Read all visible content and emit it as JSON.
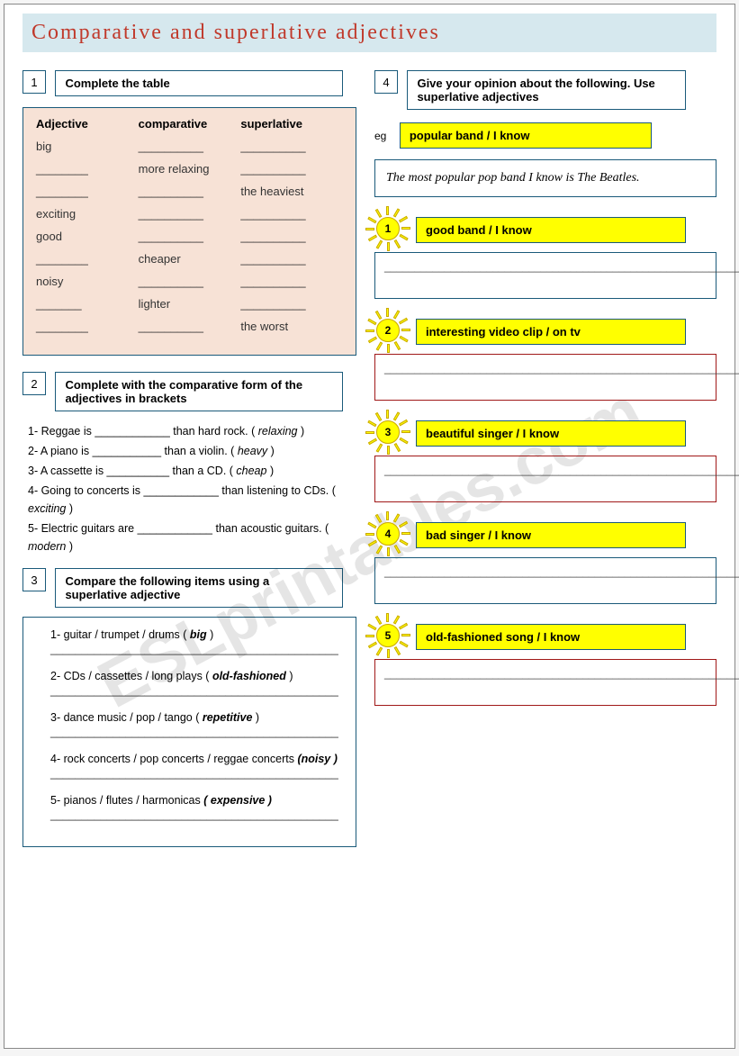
{
  "title": "Comparative    and    superlative    adjectives",
  "watermark": "ESLprintables.com",
  "ex1": {
    "num": "1",
    "instruction": "Complete  the  table",
    "headers": {
      "c1": "Adjective",
      "c2": "comparative",
      "c3": "superlative"
    },
    "rows": [
      {
        "c1": "big",
        "c2": "__________",
        "c3": "__________"
      },
      {
        "c1": "________",
        "c2": "more relaxing",
        "c3": "__________"
      },
      {
        "c1": "________",
        "c2": "__________",
        "c3": "the heaviest"
      },
      {
        "c1": "exciting",
        "c2": "__________",
        "c3": "__________"
      },
      {
        "c1": "good",
        "c2": "__________",
        "c3": "__________"
      },
      {
        "c1": "________",
        "c2": "cheaper",
        "c3": "__________"
      },
      {
        "c1": "noisy",
        "c2": "__________",
        "c3": "__________"
      },
      {
        "c1": "_______",
        "c2": "lighter",
        "c3": "__________"
      },
      {
        "c1": "________",
        "c2": "__________",
        "c3": "the worst"
      }
    ]
  },
  "ex2": {
    "num": "2",
    "instruction": "Complete with the comparative form of the adjectives in brackets",
    "items": [
      "1-   Reggae is ____________ than hard rock. ( relaxing  )",
      "2-   A piano is ___________ than a violin. ( heavy )",
      "3-   A cassette is __________ than a CD. ( cheap )",
      "4-   Going to concerts is ____________  than listening to CDs. ( exciting )",
      "5-   Electric guitars are  ____________ than acoustic guitars. ( modern )"
    ]
  },
  "ex3": {
    "num": "3",
    "instruction": "Compare the following items using a superlative adjective",
    "items": [
      {
        "p": "1-   guitar  / trumpet  / drums  (  ",
        "b": "big",
        "s": "  )"
      },
      {
        "p": "2-   CDs  / cassettes / long plays   ( ",
        "b": "old-fashioned",
        "s": " )"
      },
      {
        "p": "3-   dance music / pop / tango    ( ",
        "b": "repetitive",
        "s": " )"
      },
      {
        "p": "4-   rock concerts / pop concerts / reggae concerts ",
        "b": "(noisy  )",
        "s": ""
      },
      {
        "p": "5-   pianos /  flutes / harmonicas  ",
        "b": "( expensive )",
        "s": ""
      }
    ],
    "blank": "______________________________________________"
  },
  "ex4": {
    "num": "4",
    "instruction": "Give your opinion about the following. Use  superlative adjectives",
    "eg_label": "eg",
    "eg_prompt": "popular band  /   I know",
    "example": "The most  popular pop  band I know is The Beatles.",
    "opinions": [
      {
        "n": "1",
        "prompt": "good band    /   I know",
        "border": "#1a5a7a"
      },
      {
        "n": "2",
        "prompt": "interesting video clip   /   on tv",
        "border": "#a01818"
      },
      {
        "n": "3",
        "prompt": "beautiful singer   /   I know",
        "border": "#a01818"
      },
      {
        "n": "4",
        "prompt": "bad singer   /   I know",
        "border": "#1a5a7a"
      },
      {
        "n": "5",
        "prompt": "old-fashioned song  / I know",
        "border": "#a01818"
      }
    ],
    "answer_line": "________________________________________________________________________________________________"
  }
}
